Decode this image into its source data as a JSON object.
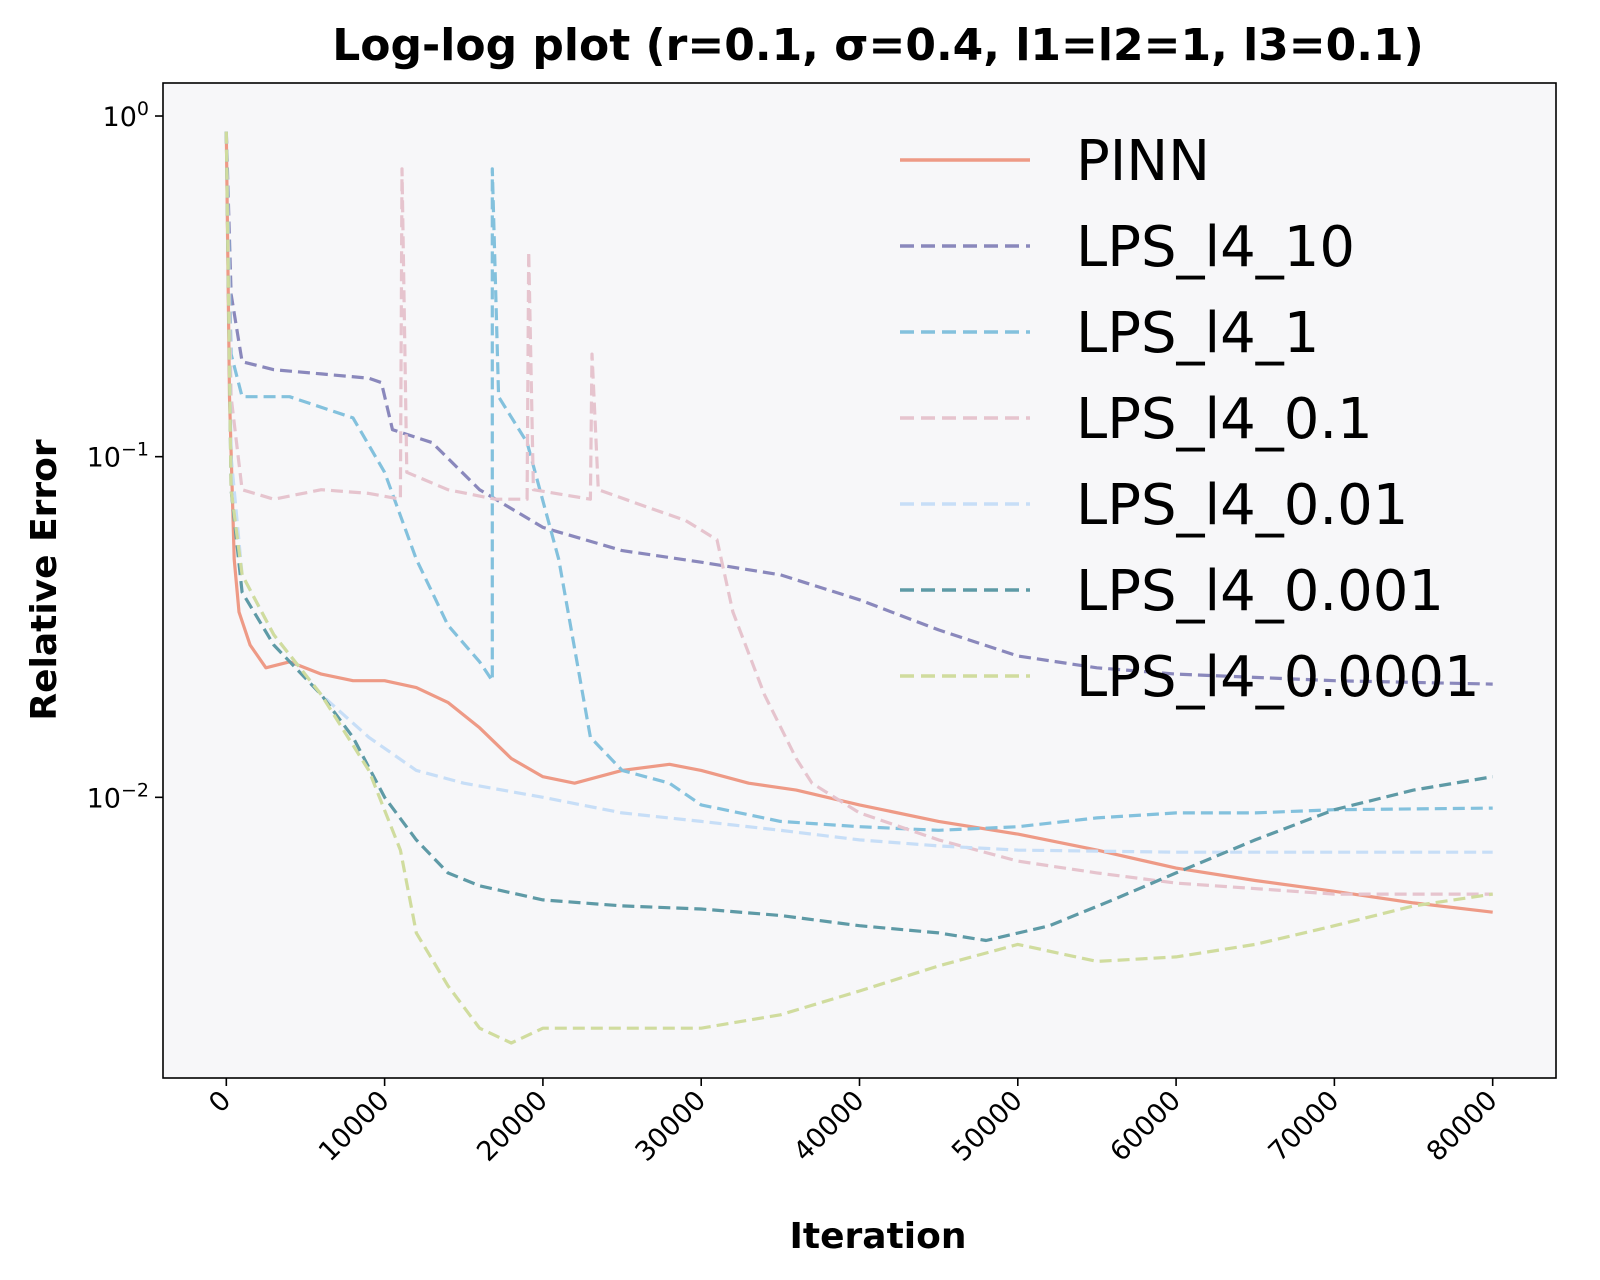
{
  "chart_data": {
    "type": "line",
    "title": "Log-log plot (r=0.1, σ=0.4, l1=l2=1, l3=0.1)",
    "xlabel": "Iteration",
    "ylabel": "Relative Error",
    "xlim": [
      -4000,
      84000
    ],
    "ylim": [
      0.0015,
      1.25
    ],
    "yscale": "log",
    "grid": false,
    "legend_position": "top-right",
    "x_ticks": [
      "0",
      "10000",
      "20000",
      "30000",
      "40000",
      "50000",
      "60000",
      "70000",
      "80000"
    ],
    "y_ticks": [
      {
        "base": "10",
        "exp": "0",
        "value": 1
      },
      {
        "base": "10",
        "exp": "−1",
        "value": 0.1
      },
      {
        "base": "10",
        "exp": "−2",
        "value": 0.01
      }
    ],
    "series": [
      {
        "name": "PINN",
        "color": "#EE9A86",
        "dash": "solid",
        "points": [
          [
            0,
            0.9
          ],
          [
            200,
            0.15
          ],
          [
            500,
            0.05
          ],
          [
            800,
            0.035
          ],
          [
            1500,
            0.028
          ],
          [
            2500,
            0.024
          ],
          [
            4000,
            0.025
          ],
          [
            6000,
            0.023
          ],
          [
            8000,
            0.022
          ],
          [
            10000,
            0.022
          ],
          [
            12000,
            0.021
          ],
          [
            14000,
            0.019
          ],
          [
            16000,
            0.016
          ],
          [
            18000,
            0.013
          ],
          [
            20000,
            0.0115
          ],
          [
            22000,
            0.011
          ],
          [
            25000,
            0.012
          ],
          [
            28000,
            0.0125
          ],
          [
            30000,
            0.012
          ],
          [
            33000,
            0.011
          ],
          [
            36000,
            0.0105
          ],
          [
            40000,
            0.0095
          ],
          [
            45000,
            0.0085
          ],
          [
            50000,
            0.0078
          ],
          [
            55000,
            0.007
          ],
          [
            60000,
            0.0062
          ],
          [
            65000,
            0.0057
          ],
          [
            70000,
            0.0053
          ],
          [
            75000,
            0.0049
          ],
          [
            80000,
            0.0046
          ]
        ]
      },
      {
        "name": "LPS_l4_10",
        "color": "#8A88BC",
        "dash": "dashed",
        "points": [
          [
            0,
            0.9
          ],
          [
            300,
            0.3
          ],
          [
            1000,
            0.19
          ],
          [
            3000,
            0.18
          ],
          [
            6000,
            0.175
          ],
          [
            9000,
            0.17
          ],
          [
            9800,
            0.165
          ],
          [
            10500,
            0.12
          ],
          [
            13000,
            0.11
          ],
          [
            16000,
            0.08
          ],
          [
            20000,
            0.062
          ],
          [
            25000,
            0.053
          ],
          [
            30000,
            0.049
          ],
          [
            35000,
            0.045
          ],
          [
            40000,
            0.038
          ],
          [
            45000,
            0.031
          ],
          [
            50000,
            0.026
          ],
          [
            55000,
            0.024
          ],
          [
            60000,
            0.023
          ],
          [
            70000,
            0.022
          ],
          [
            80000,
            0.0215
          ]
        ]
      },
      {
        "name": "LPS_l4_1",
        "color": "#83C1DD",
        "dash": "dashed",
        "points": [
          [
            0,
            0.9
          ],
          [
            300,
            0.2
          ],
          [
            1000,
            0.15
          ],
          [
            4000,
            0.15
          ],
          [
            8000,
            0.13
          ],
          [
            10000,
            0.09
          ],
          [
            12000,
            0.05
          ],
          [
            14000,
            0.032
          ],
          [
            16000,
            0.025
          ],
          [
            16800,
            0.022
          ],
          [
            16800,
            0.7
          ],
          [
            17200,
            0.15
          ],
          [
            19000,
            0.11
          ],
          [
            21000,
            0.05
          ],
          [
            23000,
            0.015
          ],
          [
            25000,
            0.012
          ],
          [
            28000,
            0.011
          ],
          [
            30000,
            0.0095
          ],
          [
            35000,
            0.0085
          ],
          [
            40000,
            0.0082
          ],
          [
            45000,
            0.008
          ],
          [
            50000,
            0.0082
          ],
          [
            55000,
            0.0087
          ],
          [
            60000,
            0.009
          ],
          [
            65000,
            0.009
          ],
          [
            70000,
            0.0092
          ],
          [
            80000,
            0.0093
          ]
        ]
      },
      {
        "name": "LPS_l4_0.1",
        "color": "#E6C4CE",
        "dash": "dashed",
        "points": [
          [
            0,
            0.9
          ],
          [
            300,
            0.15
          ],
          [
            1000,
            0.08
          ],
          [
            3000,
            0.075
          ],
          [
            6000,
            0.08
          ],
          [
            9000,
            0.078
          ],
          [
            11000,
            0.075
          ],
          [
            11100,
            0.7
          ],
          [
            11400,
            0.09
          ],
          [
            14000,
            0.08
          ],
          [
            17000,
            0.075
          ],
          [
            19000,
            0.075
          ],
          [
            19100,
            0.4
          ],
          [
            19400,
            0.08
          ],
          [
            23000,
            0.075
          ],
          [
            23100,
            0.2
          ],
          [
            23500,
            0.08
          ],
          [
            27000,
            0.07
          ],
          [
            29000,
            0.065
          ],
          [
            31000,
            0.057
          ],
          [
            32000,
            0.035
          ],
          [
            34000,
            0.02
          ],
          [
            36000,
            0.013
          ],
          [
            37000,
            0.011
          ],
          [
            40000,
            0.009
          ],
          [
            45000,
            0.0075
          ],
          [
            50000,
            0.0065
          ],
          [
            55000,
            0.006
          ],
          [
            60000,
            0.0056
          ],
          [
            70000,
            0.0052
          ],
          [
            80000,
            0.0052
          ]
        ]
      },
      {
        "name": "LPS_l4_0.01",
        "color": "#C7DEF7",
        "dash": "dashed",
        "points": [
          [
            0,
            0.9
          ],
          [
            300,
            0.1
          ],
          [
            1000,
            0.045
          ],
          [
            3000,
            0.03
          ],
          [
            6000,
            0.02
          ],
          [
            9000,
            0.015
          ],
          [
            12000,
            0.012
          ],
          [
            15000,
            0.011
          ],
          [
            20000,
            0.01
          ],
          [
            25000,
            0.009
          ],
          [
            30000,
            0.0085
          ],
          [
            35000,
            0.008
          ],
          [
            40000,
            0.0075
          ],
          [
            45000,
            0.0072
          ],
          [
            50000,
            0.007
          ],
          [
            60000,
            0.0069
          ],
          [
            70000,
            0.0069
          ],
          [
            80000,
            0.0069
          ]
        ]
      },
      {
        "name": "LPS_l4_0.001",
        "color": "#5E9AA6",
        "dash": "dashed",
        "points": [
          [
            0,
            0.9
          ],
          [
            300,
            0.08
          ],
          [
            1000,
            0.04
          ],
          [
            3000,
            0.028
          ],
          [
            6000,
            0.02
          ],
          [
            8000,
            0.015
          ],
          [
            10000,
            0.01
          ],
          [
            12000,
            0.0075
          ],
          [
            14000,
            0.006
          ],
          [
            16000,
            0.0055
          ],
          [
            20000,
            0.005
          ],
          [
            25000,
            0.0048
          ],
          [
            30000,
            0.0047
          ],
          [
            35000,
            0.0045
          ],
          [
            40000,
            0.0042
          ],
          [
            45000,
            0.004
          ],
          [
            48000,
            0.0038
          ],
          [
            52000,
            0.0042
          ],
          [
            56000,
            0.005
          ],
          [
            60000,
            0.006
          ],
          [
            65000,
            0.0075
          ],
          [
            70000,
            0.0092
          ],
          [
            75000,
            0.0105
          ],
          [
            80000,
            0.0115
          ]
        ]
      },
      {
        "name": "LPS_l4_0.0001",
        "color": "#D0DC9E",
        "dash": "dashed",
        "points": [
          [
            0,
            0.9
          ],
          [
            300,
            0.08
          ],
          [
            1000,
            0.045
          ],
          [
            3000,
            0.03
          ],
          [
            6000,
            0.02
          ],
          [
            9000,
            0.012
          ],
          [
            11000,
            0.007
          ],
          [
            12000,
            0.004
          ],
          [
            14000,
            0.0028
          ],
          [
            16000,
            0.0021
          ],
          [
            18000,
            0.0019
          ],
          [
            20000,
            0.0021
          ],
          [
            25000,
            0.0021
          ],
          [
            30000,
            0.0021
          ],
          [
            35000,
            0.0023
          ],
          [
            40000,
            0.0027
          ],
          [
            45000,
            0.0032
          ],
          [
            50000,
            0.0037
          ],
          [
            55000,
            0.0033
          ],
          [
            60000,
            0.0034
          ],
          [
            65000,
            0.0037
          ],
          [
            70000,
            0.0042
          ],
          [
            75000,
            0.0048
          ],
          [
            80000,
            0.0052
          ]
        ]
      }
    ]
  }
}
